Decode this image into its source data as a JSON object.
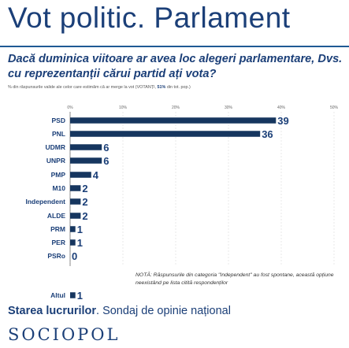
{
  "header": {
    "title": "Vot politic. Parlament",
    "question": "Dacă duminica viitoare ar avea loc alegeri parlamentare, Dvs. cu reprezentanții cărui partid ați vota?",
    "subnote_prefix": "% din răspunsurile valide ale celor care estimăm că ar merge la vot (VOTANȚI, ",
    "subnote_bold": "51%",
    "subnote_suffix": " din tot. pop.)"
  },
  "chart_data": {
    "type": "bar",
    "orientation": "horizontal",
    "categories": [
      "PSD",
      "PNL",
      "UDMR",
      "UNPR",
      "PMP",
      "M10",
      "Independent",
      "ALDE",
      "PRM",
      "PER",
      "PSRo",
      "Altul"
    ],
    "values": [
      39,
      36,
      6,
      6,
      4,
      2,
      2,
      2,
      1,
      1,
      0,
      1
    ],
    "value_labels": [
      "39",
      "36",
      "6",
      "6",
      "4",
      "2",
      "2",
      "2",
      "1",
      "1",
      "0",
      "1"
    ],
    "xlim": [
      0,
      50
    ],
    "ticks": [
      "0%",
      "10%",
      "20%",
      "30%",
      "40%",
      "50%"
    ],
    "bar_color": "#16365f",
    "grid": true,
    "note": "NOTĂ: Răspunsurile din categoria \"Independent\" au fost spontane, această opțiune neexistând pe lista citită respondenților"
  },
  "footer": {
    "bold": "Starea lucrurilor",
    "rest": ". Sondaj de opinie național"
  },
  "logo": "SOCIOPOL"
}
